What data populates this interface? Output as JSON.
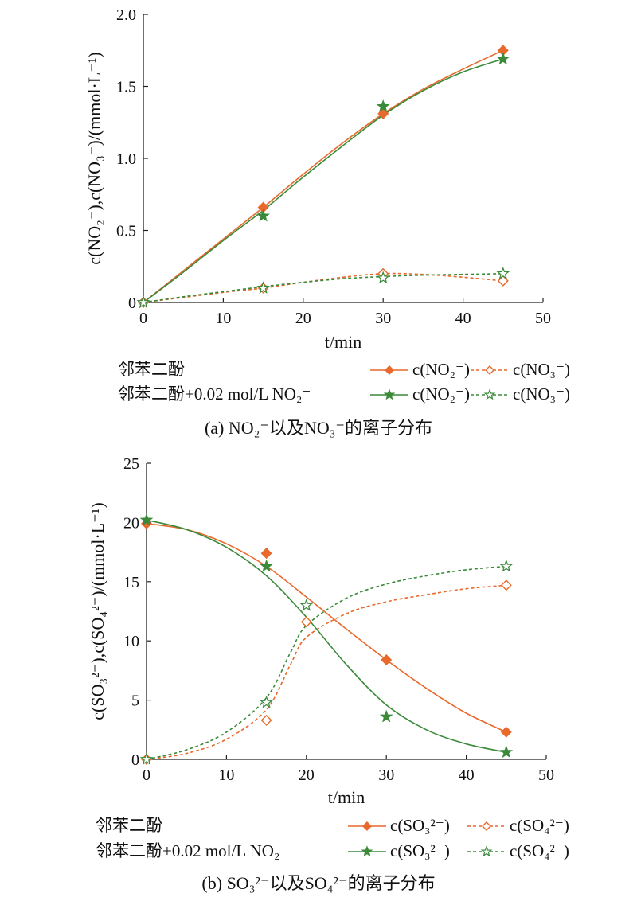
{
  "colors": {
    "orange": "#E8692B",
    "green": "#3A8A3A",
    "axis": "#222222"
  },
  "legend_groups": {
    "control": "邻苯二酚",
    "with_nitrite": "邻苯二酚+0.02 mol/L NO₂⁻"
  },
  "chart_data": [
    {
      "type": "line",
      "caption": "(a) NO₂⁻以及NO₃⁻的离子分布",
      "xlabel": "t/min",
      "ylabel": "c(NO₂⁻),c(NO₃⁻)/(mmol·L⁻¹)",
      "xlim": [
        0,
        50
      ],
      "ylim": [
        0,
        2.0
      ],
      "x_ticks": [
        "0",
        "10",
        "20",
        "30",
        "40",
        "50"
      ],
      "y_ticks": [
        "0",
        "0.5",
        "1.0",
        "1.5",
        "2.0"
      ],
      "legend_position": "bottom",
      "series": [
        {
          "name": "c(NO₂⁻)",
          "group": "邻苯二酚",
          "color": "#E8692B",
          "marker": "diamond",
          "filled": true,
          "dashed": false,
          "x": [
            0,
            15,
            30,
            45
          ],
          "values": [
            0,
            0.66,
            1.31,
            1.75
          ],
          "curve": [
            [
              0,
              0
            ],
            [
              5,
              0.22
            ],
            [
              10,
              0.44
            ],
            [
              15,
              0.66
            ],
            [
              20,
              0.89
            ],
            [
              25,
              1.11
            ],
            [
              30,
              1.31
            ],
            [
              35,
              1.48
            ],
            [
              40,
              1.62
            ],
            [
              45,
              1.75
            ]
          ]
        },
        {
          "name": "c(NO₃⁻)",
          "group": "邻苯二酚",
          "color": "#E8692B",
          "marker": "diamond",
          "filled": false,
          "dashed": true,
          "x": [
            0,
            15,
            30,
            45
          ],
          "values": [
            0,
            0.1,
            0.2,
            0.15
          ],
          "curve": [
            [
              0,
              0
            ],
            [
              5,
              0.035
            ],
            [
              10,
              0.07
            ],
            [
              15,
              0.1
            ],
            [
              20,
              0.14
            ],
            [
              25,
              0.175
            ],
            [
              30,
              0.2
            ],
            [
              35,
              0.195
            ],
            [
              40,
              0.175
            ],
            [
              45,
              0.15
            ]
          ]
        },
        {
          "name": "c(NO₂⁻)",
          "group": "邻苯二酚+0.02 mol/L NO₂⁻",
          "color": "#3A8A3A",
          "marker": "star",
          "filled": true,
          "dashed": false,
          "x": [
            0,
            15,
            30,
            45
          ],
          "values": [
            0,
            0.6,
            1.36,
            1.69
          ],
          "curve": [
            [
              0,
              0
            ],
            [
              5,
              0.21
            ],
            [
              10,
              0.43
            ],
            [
              15,
              0.64
            ],
            [
              20,
              0.87
            ],
            [
              25,
              1.09
            ],
            [
              30,
              1.3
            ],
            [
              35,
              1.47
            ],
            [
              40,
              1.6
            ],
            [
              45,
              1.69
            ]
          ]
        },
        {
          "name": "c(NO₃⁻)",
          "group": "邻苯二酚+0.02 mol/L NO₂⁻",
          "color": "#3A8A3A",
          "marker": "star",
          "filled": false,
          "dashed": true,
          "x": [
            0,
            15,
            30,
            45
          ],
          "values": [
            0,
            0.1,
            0.17,
            0.2
          ],
          "curve": [
            [
              0,
              0
            ],
            [
              5,
              0.04
            ],
            [
              10,
              0.075
            ],
            [
              15,
              0.11
            ],
            [
              20,
              0.14
            ],
            [
              25,
              0.165
            ],
            [
              30,
              0.18
            ],
            [
              35,
              0.19
            ],
            [
              40,
              0.195
            ],
            [
              45,
              0.2
            ]
          ]
        }
      ]
    },
    {
      "type": "line",
      "caption": "(b) SO₃²⁻以及SO₄²⁻的离子分布",
      "xlabel": "t/min",
      "ylabel": "c(SO₃²⁻),c(SO₄²⁻)/(mmol·L⁻¹)",
      "xlim": [
        0,
        50
      ],
      "ylim": [
        0,
        25
      ],
      "x_ticks": [
        "0",
        "10",
        "20",
        "30",
        "40",
        "50"
      ],
      "y_ticks": [
        "0",
        "5",
        "10",
        "15",
        "20",
        "25"
      ],
      "legend_position": "bottom",
      "series": [
        {
          "name": "c(SO₃²⁻)",
          "group": "邻苯二酚",
          "color": "#E8692B",
          "marker": "diamond",
          "filled": true,
          "dashed": false,
          "x": [
            0,
            15,
            30,
            45
          ],
          "values": [
            19.9,
            17.4,
            8.4,
            2.3
          ],
          "curve": [
            [
              0,
              19.9
            ],
            [
              5,
              19.4
            ],
            [
              10,
              18.2
            ],
            [
              15,
              16.3
            ],
            [
              20,
              13.7
            ],
            [
              25,
              11.0
            ],
            [
              30,
              8.4
            ],
            [
              35,
              6.0
            ],
            [
              40,
              3.9
            ],
            [
              45,
              2.3
            ]
          ]
        },
        {
          "name": "c(SO₄²⁻)",
          "group": "邻苯二酚",
          "color": "#E8692B",
          "marker": "diamond",
          "filled": false,
          "dashed": true,
          "x": [
            0,
            15,
            20,
            45
          ],
          "values": [
            0,
            3.3,
            11.6,
            14.7
          ],
          "curve": [
            [
              0,
              0
            ],
            [
              5,
              0.5
            ],
            [
              10,
              1.7
            ],
            [
              15,
              4.2
            ],
            [
              18,
              8.0
            ],
            [
              20,
              10.3
            ],
            [
              25,
              12.3
            ],
            [
              30,
              13.3
            ],
            [
              35,
              13.9
            ],
            [
              40,
              14.4
            ],
            [
              45,
              14.7
            ]
          ]
        },
        {
          "name": "c(SO₃²⁻)",
          "group": "邻苯二酚+0.02 mol/L NO₂⁻",
          "color": "#3A8A3A",
          "marker": "star",
          "filled": true,
          "dashed": false,
          "x": [
            0,
            15,
            30,
            45
          ],
          "values": [
            20.2,
            16.3,
            3.6,
            0.6
          ],
          "curve": [
            [
              0,
              20.2
            ],
            [
              5,
              19.4
            ],
            [
              10,
              17.9
            ],
            [
              15,
              15.5
            ],
            [
              20,
              12.0
            ],
            [
              25,
              8.0
            ],
            [
              30,
              4.6
            ],
            [
              35,
              2.5
            ],
            [
              40,
              1.3
            ],
            [
              45,
              0.6
            ]
          ]
        },
        {
          "name": "c(SO₄²⁻)",
          "group": "邻苯二酚+0.02 mol/L NO₂⁻",
          "color": "#3A8A3A",
          "marker": "star",
          "filled": false,
          "dashed": true,
          "x": [
            0,
            15,
            20,
            45
          ],
          "values": [
            0,
            4.8,
            13.0,
            16.3
          ],
          "curve": [
            [
              0,
              0
            ],
            [
              5,
              0.8
            ],
            [
              10,
              2.3
            ],
            [
              15,
              5.2
            ],
            [
              18,
              9.0
            ],
            [
              20,
              11.3
            ],
            [
              25,
              13.6
            ],
            [
              30,
              14.8
            ],
            [
              35,
              15.5
            ],
            [
              40,
              16.0
            ],
            [
              45,
              16.3
            ]
          ]
        }
      ]
    }
  ]
}
